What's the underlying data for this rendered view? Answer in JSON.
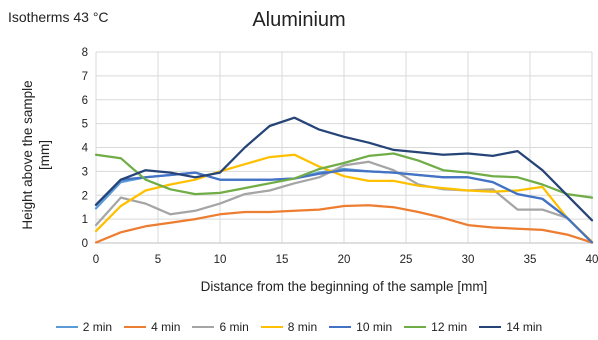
{
  "chart_data": {
    "type": "line",
    "title": "Aluminium",
    "subtitle": "Isotherms  43 °C",
    "xlabel": "Distance from the beginning of the sample [mm]",
    "ylabel_lines": [
      "Height above the sample",
      "[mm]"
    ],
    "xlim": [
      0,
      40
    ],
    "ylim": [
      0,
      8
    ],
    "xticks": [
      0,
      5,
      10,
      15,
      20,
      25,
      30,
      35,
      40
    ],
    "yticks": [
      0,
      1,
      2,
      3,
      4,
      5,
      6,
      7,
      8
    ],
    "grid": true,
    "legend_position": "bottom",
    "x": [
      0,
      2,
      4,
      6,
      8,
      10,
      12,
      14,
      16,
      18,
      20,
      22,
      24,
      26,
      28,
      30,
      32,
      34,
      36,
      38,
      40
    ],
    "series": [
      {
        "name": "2 min",
        "color": "#5B9BD5",
        "values": [
          1.45,
          2.55,
          2.75,
          2.85,
          2.95,
          2.65,
          2.65,
          2.65,
          2.7,
          2.95,
          3.1,
          3.0,
          2.95,
          2.85,
          2.75,
          2.75,
          2.55,
          2.05,
          1.85,
          1.05,
          0.02
        ]
      },
      {
        "name": "4 min",
        "color": "#ED7D31",
        "values": [
          0.02,
          0.45,
          0.7,
          0.85,
          1.0,
          1.2,
          1.3,
          1.3,
          1.35,
          1.4,
          1.55,
          1.58,
          1.5,
          1.3,
          1.05,
          0.75,
          0.65,
          0.6,
          0.55,
          0.35,
          0.02
        ]
      },
      {
        "name": "6 min",
        "color": "#A5A5A5",
        "values": [
          0.75,
          1.9,
          1.65,
          1.2,
          1.35,
          1.65,
          2.05,
          2.2,
          2.5,
          2.75,
          3.25,
          3.4,
          3.05,
          2.45,
          2.25,
          2.2,
          2.25,
          1.4,
          1.4,
          1.05,
          0.05
        ]
      },
      {
        "name": "8 min",
        "color": "#FFC000",
        "values": [
          0.5,
          1.55,
          2.2,
          2.45,
          2.65,
          3.0,
          3.3,
          3.6,
          3.7,
          3.2,
          2.8,
          2.6,
          2.6,
          2.4,
          2.3,
          2.2,
          2.15,
          2.2,
          2.35,
          1.05,
          0.05
        ]
      },
      {
        "name": "10 min",
        "color": "#4472C4",
        "values": [
          1.6,
          2.65,
          2.75,
          2.85,
          2.95,
          2.65,
          2.65,
          2.65,
          2.7,
          2.9,
          3.05,
          3.0,
          2.95,
          2.85,
          2.75,
          2.75,
          2.55,
          2.05,
          1.85,
          1.05,
          0.02
        ]
      },
      {
        "name": "12 min",
        "color": "#70AD47",
        "values": [
          3.7,
          3.55,
          2.65,
          2.25,
          2.05,
          2.1,
          2.3,
          2.5,
          2.7,
          3.1,
          3.35,
          3.65,
          3.75,
          3.45,
          3.05,
          2.95,
          2.8,
          2.75,
          2.45,
          2.05,
          1.9
        ]
      },
      {
        "name": "14 min",
        "color": "#264478",
        "values": [
          1.6,
          2.65,
          3.05,
          2.95,
          2.75,
          2.95,
          4.0,
          4.9,
          5.25,
          4.75,
          4.45,
          4.2,
          3.9,
          3.8,
          3.7,
          3.75,
          3.65,
          3.85,
          3.05,
          2.0,
          0.95
        ]
      }
    ]
  }
}
